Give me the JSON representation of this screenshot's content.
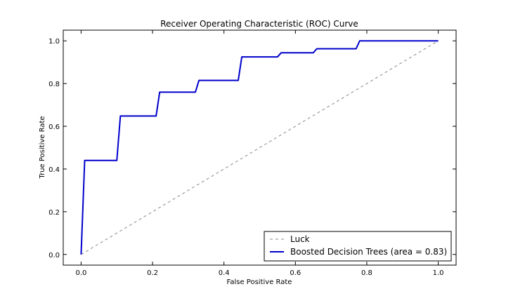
{
  "chart_data": {
    "type": "line",
    "title": "Receiver Operating Characteristic (ROC) Curve",
    "xlabel": "False Positive Rate",
    "ylabel": "True Positive Rate",
    "xlim": [
      -0.05,
      1.05
    ],
    "ylim": [
      -0.05,
      1.05
    ],
    "xticks": [
      "0.0",
      "0.2",
      "0.4",
      "0.6",
      "0.8",
      "1.0"
    ],
    "yticks": [
      "0.0",
      "0.2",
      "0.4",
      "0.6",
      "0.8",
      "1.0"
    ],
    "legend_position": "lower-right",
    "grid": false,
    "series": [
      {
        "name": "Luck",
        "style": "dashed",
        "color": "#888888",
        "x": [
          0,
          1
        ],
        "y": [
          0,
          1
        ]
      },
      {
        "name": "Boosted Decision Trees (area = 0.83)",
        "style": "solid",
        "color": "#0000cc",
        "x": [
          0,
          0.01,
          0.1,
          0.11,
          0.21,
          0.22,
          0.32,
          0.33,
          0.44,
          0.45,
          0.55,
          0.56,
          0.65,
          0.66,
          0.77,
          0.78,
          1.0
        ],
        "y": [
          0,
          0.44,
          0.44,
          0.648,
          0.648,
          0.76,
          0.76,
          0.815,
          0.815,
          0.925,
          0.925,
          0.944,
          0.944,
          0.963,
          0.963,
          1.0,
          1.0
        ]
      }
    ]
  }
}
